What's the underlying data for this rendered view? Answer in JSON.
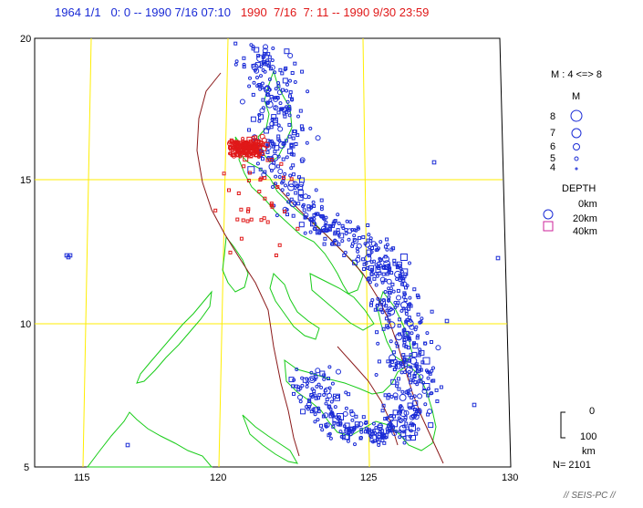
{
  "header": {
    "range_blue": "1964 1/1   0: 0 -- 1990 7/16 07:10",
    "range_red": "1990  7/16  7: 11 -- 1990 9/30 23:59"
  },
  "axes": {
    "lat_ticks": [
      "20",
      "15",
      "10",
      "5"
    ],
    "lon_ticks": [
      "115",
      "120",
      "125",
      "130"
    ]
  },
  "legend": {
    "magnitude_range": "M : 4 <=> 8",
    "magnitude_title": "M",
    "magnitude_labels": [
      "8",
      "7",
      "6",
      "5",
      "4"
    ],
    "depth_title": "DEPTH",
    "depth_labels": [
      "0km",
      "20km",
      "40km"
    ],
    "scale_top": "0",
    "scale_value": "100",
    "scale_unit": "km",
    "count": "N= 2101"
  },
  "footer": "// SEIS-PC //",
  "colors": {
    "blue": "#1a2bd6",
    "red": "#e01818",
    "green": "#18cc18",
    "grid": "#ffee00",
    "fault": "#8b1a1a",
    "magenta": "#cc2299"
  }
}
